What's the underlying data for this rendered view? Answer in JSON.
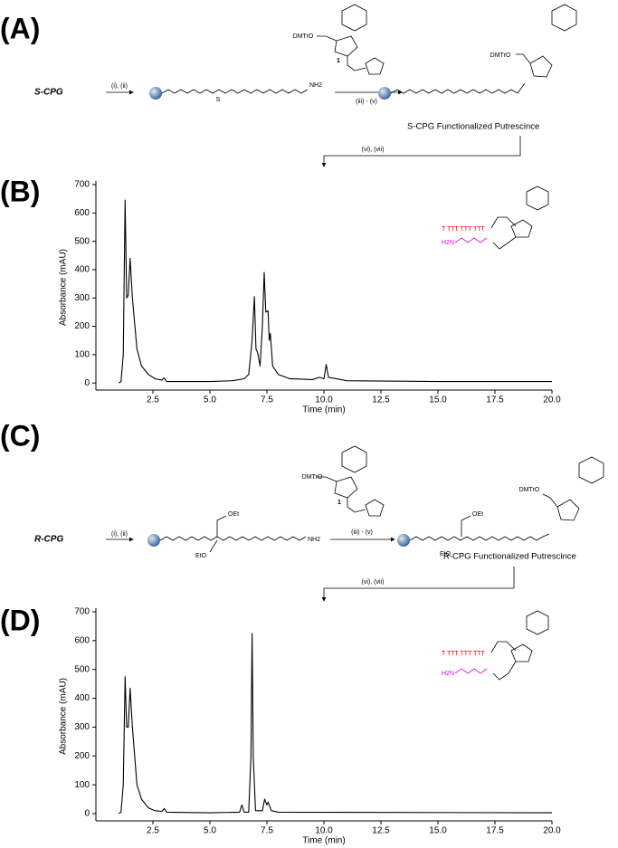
{
  "panels": {
    "a": "(A)",
    "b": "(B)",
    "c": "(C)",
    "d": "(D)"
  },
  "scheme_a": {
    "start": "S-CPG",
    "step1": "(i), (ii)",
    "step2": "(iii) - (v)",
    "step3": "(vi), (vii)",
    "reagent_number": "1",
    "reagent_dmtro": "DMTrO",
    "product_dmtro": "DMTrO",
    "amine": "NH2",
    "product": "S-CPG Functionalized Putrescince",
    "sulfone": "S"
  },
  "scheme_c": {
    "start": "R-CPG",
    "step1": "(i), (ii)",
    "step2": "(iii) - (v)",
    "step3": "(vi), (vii)",
    "reagent_number": "1",
    "reagent_dmtro": "DMTrO",
    "product_dmtro": "DMTrO",
    "amine": "NH2",
    "product": "R-CPG Functionalized Putrescince",
    "oet": "OEt",
    "eto": "EtO",
    "product_oet": "OEt",
    "product_eto": "EtO"
  },
  "inset_b": {
    "oligo": "T TTT TTT TTT",
    "amine": "H2N"
  },
  "inset_d": {
    "oligo": "T TTT TTT TTT",
    "amine": "H2N"
  },
  "chart_data": [
    {
      "type": "line",
      "x_label": "Time (min)",
      "y_label": "Absorbance (mAU)",
      "color": "#000000",
      "x": [
        1.0,
        1.1,
        1.2,
        1.28,
        1.35,
        1.42,
        1.5,
        1.6,
        1.8,
        2.0,
        2.3,
        2.6,
        2.9,
        3.0,
        3.1,
        4.0,
        5.0,
        6.0,
        6.5,
        6.7,
        6.85,
        6.95,
        7.02,
        7.1,
        7.2,
        7.3,
        7.38,
        7.45,
        7.55,
        7.6,
        7.65,
        7.75,
        8.0,
        8.5,
        9.5,
        9.8,
        10.0,
        10.1,
        10.2,
        11.0,
        15.0,
        20.0
      ],
      "values": [
        0,
        5,
        100,
        645,
        300,
        310,
        440,
        300,
        120,
        60,
        30,
        15,
        10,
        18,
        5,
        5,
        5,
        8,
        15,
        30,
        150,
        305,
        120,
        105,
        60,
        200,
        390,
        250,
        255,
        150,
        175,
        60,
        30,
        15,
        12,
        20,
        15,
        65,
        20,
        8,
        5,
        5
      ],
      "xlim": [
        0,
        20
      ],
      "ylim": [
        -25,
        700
      ],
      "xticks": [
        2.5,
        {
          "value": 5,
          "label": "5.0"
        },
        7.5,
        {
          "value": 10,
          "label": "10.0"
        },
        12.5,
        {
          "value": 15,
          "label": "15.0"
        },
        17.5,
        {
          "value": 20,
          "label": "20.0"
        }
      ],
      "yticks": [
        0,
        100,
        200,
        300,
        400,
        500,
        600,
        700
      ]
    },
    {
      "type": "line",
      "x_label": "Time (min)",
      "y_label": "Absorbance (mAU)",
      "color": "#000000",
      "x": [
        1.0,
        1.1,
        1.2,
        1.28,
        1.35,
        1.42,
        1.5,
        1.6,
        1.8,
        2.0,
        2.3,
        2.6,
        2.9,
        3.0,
        3.1,
        5.0,
        6.3,
        6.4,
        6.5,
        6.7,
        6.8,
        6.85,
        6.9,
        7.0,
        7.3,
        7.4,
        7.5,
        7.55,
        7.7,
        8.0,
        20.0
      ],
      "values": [
        0,
        5,
        100,
        475,
        300,
        300,
        435,
        300,
        100,
        50,
        20,
        10,
        8,
        18,
        5,
        3,
        5,
        30,
        5,
        5,
        200,
        625,
        200,
        10,
        10,
        50,
        30,
        40,
        10,
        5,
        3
      ],
      "xlim": [
        0,
        20
      ],
      "ylim": [
        -25,
        700
      ],
      "xticks": [
        2.5,
        {
          "value": 5,
          "label": "5.0"
        },
        7.5,
        {
          "value": 10,
          "label": "10.0"
        },
        12.5,
        {
          "value": 15,
          "label": "15.0"
        },
        17.5,
        {
          "value": 20,
          "label": "20.0"
        }
      ],
      "yticks": [
        0,
        100,
        200,
        300,
        400,
        500,
        600,
        700
      ]
    }
  ]
}
